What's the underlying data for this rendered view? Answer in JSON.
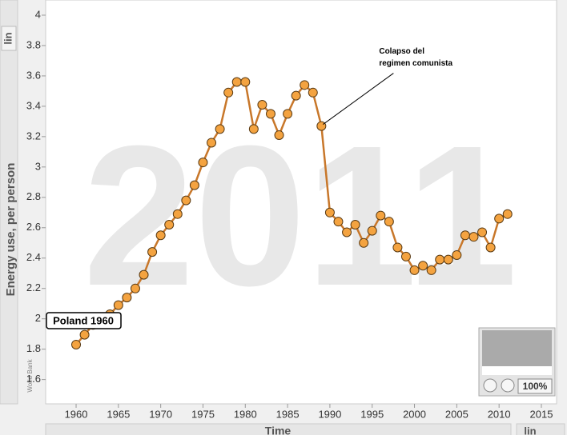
{
  "chart_data": {
    "type": "line",
    "watermark": "2011",
    "ylabel": "Energy use, per person",
    "xlabel": "Time",
    "yscale_button": "lin",
    "xscale_button": "lin",
    "source": "World Bank",
    "zoom": "100%",
    "point_label": "Poland 1960",
    "annotation": [
      "Colapso del",
      "regimen comunista"
    ],
    "annotation_x": 1989,
    "x": [
      1960,
      1961,
      1962,
      1963,
      1964,
      1965,
      1966,
      1967,
      1968,
      1969,
      1970,
      1971,
      1972,
      1973,
      1974,
      1975,
      1976,
      1977,
      1978,
      1979,
      1980,
      1981,
      1982,
      1983,
      1984,
      1985,
      1986,
      1987,
      1988,
      1989,
      1990,
      1991,
      1992,
      1993,
      1994,
      1995,
      1996,
      1997,
      1998,
      1999,
      2000,
      2001,
      2002,
      2003,
      2004,
      2005,
      2006,
      2007,
      2008,
      2009,
      2010,
      2011
    ],
    "series": [
      {
        "name": "Poland",
        "color": "#f4a340",
        "values": [
          1.83,
          1.895,
          1.96,
          2.0,
          2.03,
          2.09,
          2.14,
          2.2,
          2.29,
          2.44,
          2.55,
          2.62,
          2.69,
          2.78,
          2.88,
          3.03,
          3.16,
          3.25,
          3.49,
          3.56,
          3.56,
          3.25,
          3.41,
          3.35,
          3.21,
          3.35,
          3.47,
          3.54,
          3.49,
          3.27,
          2.7,
          2.64,
          2.57,
          2.62,
          2.5,
          2.58,
          2.68,
          2.64,
          2.47,
          2.41,
          2.32,
          2.35,
          2.32,
          2.39,
          2.39,
          2.42,
          2.55,
          2.54,
          2.57,
          2.47,
          2.66,
          2.69
        ]
      }
    ],
    "xlim": [
      1956.4,
      2016.8
    ],
    "ylim": [
      1.44,
      4.1
    ],
    "xticks": [
      1960,
      1965,
      1970,
      1975,
      1980,
      1985,
      1990,
      1995,
      2000,
      2005,
      2010,
      2015
    ],
    "yticks": [
      1.6,
      1.8,
      2,
      2.2,
      2.4,
      2.6,
      2.8,
      3,
      3.2,
      3.4,
      3.6,
      3.8,
      4
    ]
  }
}
